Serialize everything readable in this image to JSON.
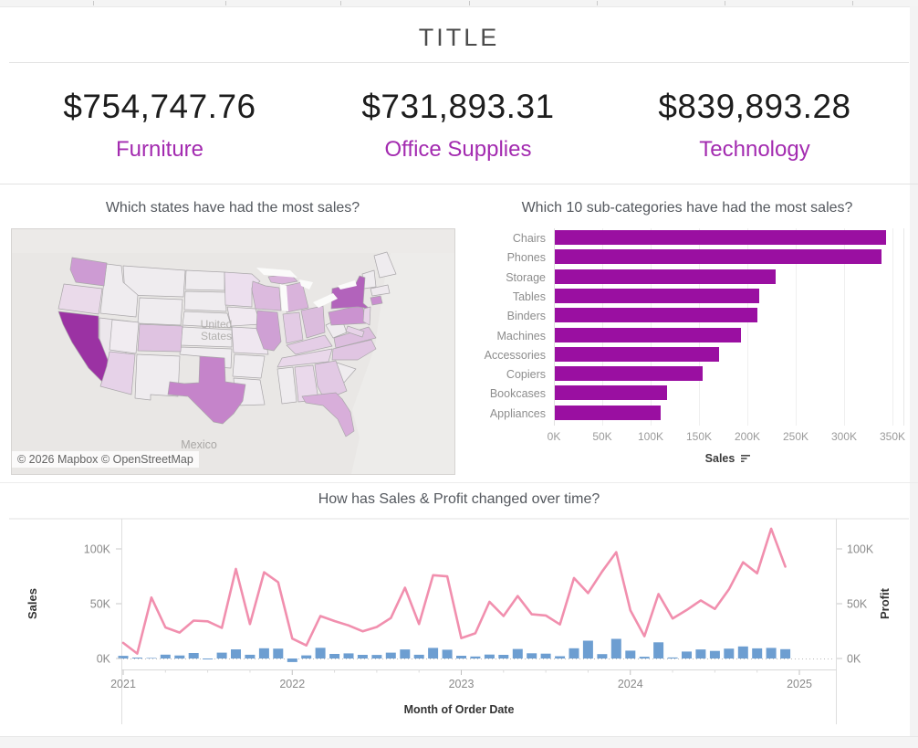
{
  "header": {
    "title": "TITLE"
  },
  "kpis": [
    {
      "value": "$754,747.76",
      "label": "Furniture"
    },
    {
      "value": "$731,893.31",
      "label": "Office Supplies"
    },
    {
      "value": "$839,893.28",
      "label": "Technology"
    }
  ],
  "colors": {
    "kpi_label": "#a32bb0",
    "bar_purple": "#9a0fa1",
    "line_pink": "#f18fae",
    "bar_blue": "#6d9ed1"
  },
  "map": {
    "title": "Which states have had the most sales?",
    "attribution": "© 2026 Mapbox © OpenStreetMap",
    "labels": {
      "country_line1": "United",
      "country_line2": "States",
      "neighbor": "Mexico"
    },
    "state_colors": {
      "CA": "#9b32a3",
      "NY": "#b263bb",
      "TX": "#c584ca",
      "WA": "#cd9bd3",
      "PA": "#cb93d0",
      "IL": "#cfa0d4",
      "MI": "#d9b3db",
      "FL": "#d8aeda",
      "OH": "#dbbcdd",
      "WI": "#dcbade",
      "VA": "#ddbfdf",
      "CO": "#dfc3e1",
      "NC": "#e0c5e2",
      "GA": "#e2c9e4",
      "IN": "#e3cbe5",
      "KY": "#e4cde6",
      "AZ": "#e6d2e8",
      "CT": "#c98fcf",
      "MN": "#ecdfee",
      "TN": "#e9d8ea",
      "AL": "#ead9eb",
      "MO": "#efe7f0",
      "OR": "#eadaea",
      "NJ": "#e8d5e9",
      "IA": "#f0e9f0",
      "UT": "#f1ecf1",
      "NV": "#ece7ec",
      "MD": "#e7d3e8",
      "MA": "#eee9ee",
      "default": "#efecef"
    }
  },
  "subcat": {
    "title": "Which 10 sub-categories have had the most sales?",
    "axis_label": "Sales"
  },
  "timeseries": {
    "title": "How has Sales & Profit changed over time?",
    "xlabel": "Month of Order Date",
    "left_axis": "Sales",
    "right_axis": "Profit"
  },
  "chart_data": [
    {
      "type": "bar",
      "orientation": "horizontal",
      "title": "Which 10 sub-categories have had the most sales?",
      "categories": [
        "Chairs",
        "Phones",
        "Storage",
        "Tables",
        "Binders",
        "Machines",
        "Accessories",
        "Copiers",
        "Bookcases",
        "Appliances"
      ],
      "values": [
        342000,
        338000,
        228000,
        211000,
        209000,
        192000,
        170000,
        153000,
        116000,
        109000
      ],
      "xlabel": "Sales",
      "xticks": [
        "0K",
        "50K",
        "100K",
        "150K",
        "200K",
        "250K",
        "300K",
        "350K"
      ],
      "xlim": [
        0,
        362000
      ],
      "sort": "descending",
      "grid": true,
      "bar_color": "#9a0fa1"
    },
    {
      "type": "combo",
      "title": "How has Sales & Profit changed over time?",
      "xlabel": "Month of Order Date",
      "x_months_start": "2021-01",
      "x_months_end": "2024-12",
      "x_year_ticks": [
        "2021",
        "2022",
        "2023",
        "2024",
        "2025"
      ],
      "y_ticks_left": [
        "0K",
        "50K",
        "100K"
      ],
      "y_ticks_right": [
        "0K",
        "50K",
        "100K"
      ],
      "ylim": [
        -5000,
        127000
      ],
      "legend_position": "none",
      "series": [
        {
          "name": "Sales",
          "mark": "line",
          "axis": "left",
          "color": "#f18fae",
          "values": [
            14237,
            4520,
            55691,
            28295,
            23648,
            34595,
            33946,
            27909,
            81777,
            31453,
            78629,
            69545,
            18174,
            11951,
            38726,
            34195,
            30131,
            24797,
            28765,
            36898,
            64595,
            31404,
            75973,
            74920,
            18542,
            22978,
            51716,
            38750,
            56988,
            40344,
            39262,
            31115,
            73410,
            59687,
            79412,
            96999,
            43971,
            20301,
            58872,
            36522,
            44261,
            52982,
            45264,
            63121,
            87867,
            77777,
            118448,
            83829
          ]
        },
        {
          "name": "Profit",
          "mark": "bar",
          "axis": "right",
          "color": "#6d9ed1",
          "values": [
            2450,
            862,
            499,
            3489,
            2739,
            4977,
            -841,
            5318,
            8328,
            3448,
            9292,
            8984,
            -3281,
            2814,
            9732,
            4187,
            4668,
            3336,
            3289,
            5356,
            8209,
            3446,
            9690,
            8017,
            2475,
            1867,
            3615,
            3343,
            8662,
            4750,
            4432,
            2062,
            9328,
            16243,
            4011,
            17885,
            7140,
            1614,
            14752,
            933,
            6343,
            8223,
            6953,
            9041,
            10991,
            9275,
            9690,
            8483
          ]
        }
      ]
    },
    {
      "type": "choropleth",
      "title": "Which states have had the most sales?",
      "region": "United States (lower 48)",
      "encoding": "darker purple = higher sales",
      "states_shaded": {
        "highest": [
          "California"
        ],
        "high": [
          "New York"
        ],
        "medium": [
          "Texas",
          "Washington",
          "Pennsylvania",
          "Illinois",
          "Michigan",
          "Florida"
        ],
        "light": [
          "Ohio",
          "Wisconsin",
          "Virginia",
          "North Carolina",
          "Georgia",
          "Colorado",
          "Arizona",
          "Indiana",
          "Kentucky",
          "Connecticut",
          "Minnesota",
          "Tennessee",
          "Alabama",
          "Oregon",
          "New Jersey",
          "Missouri",
          "Iowa",
          "Utah",
          "Nevada",
          "Maryland"
        ]
      }
    }
  ]
}
